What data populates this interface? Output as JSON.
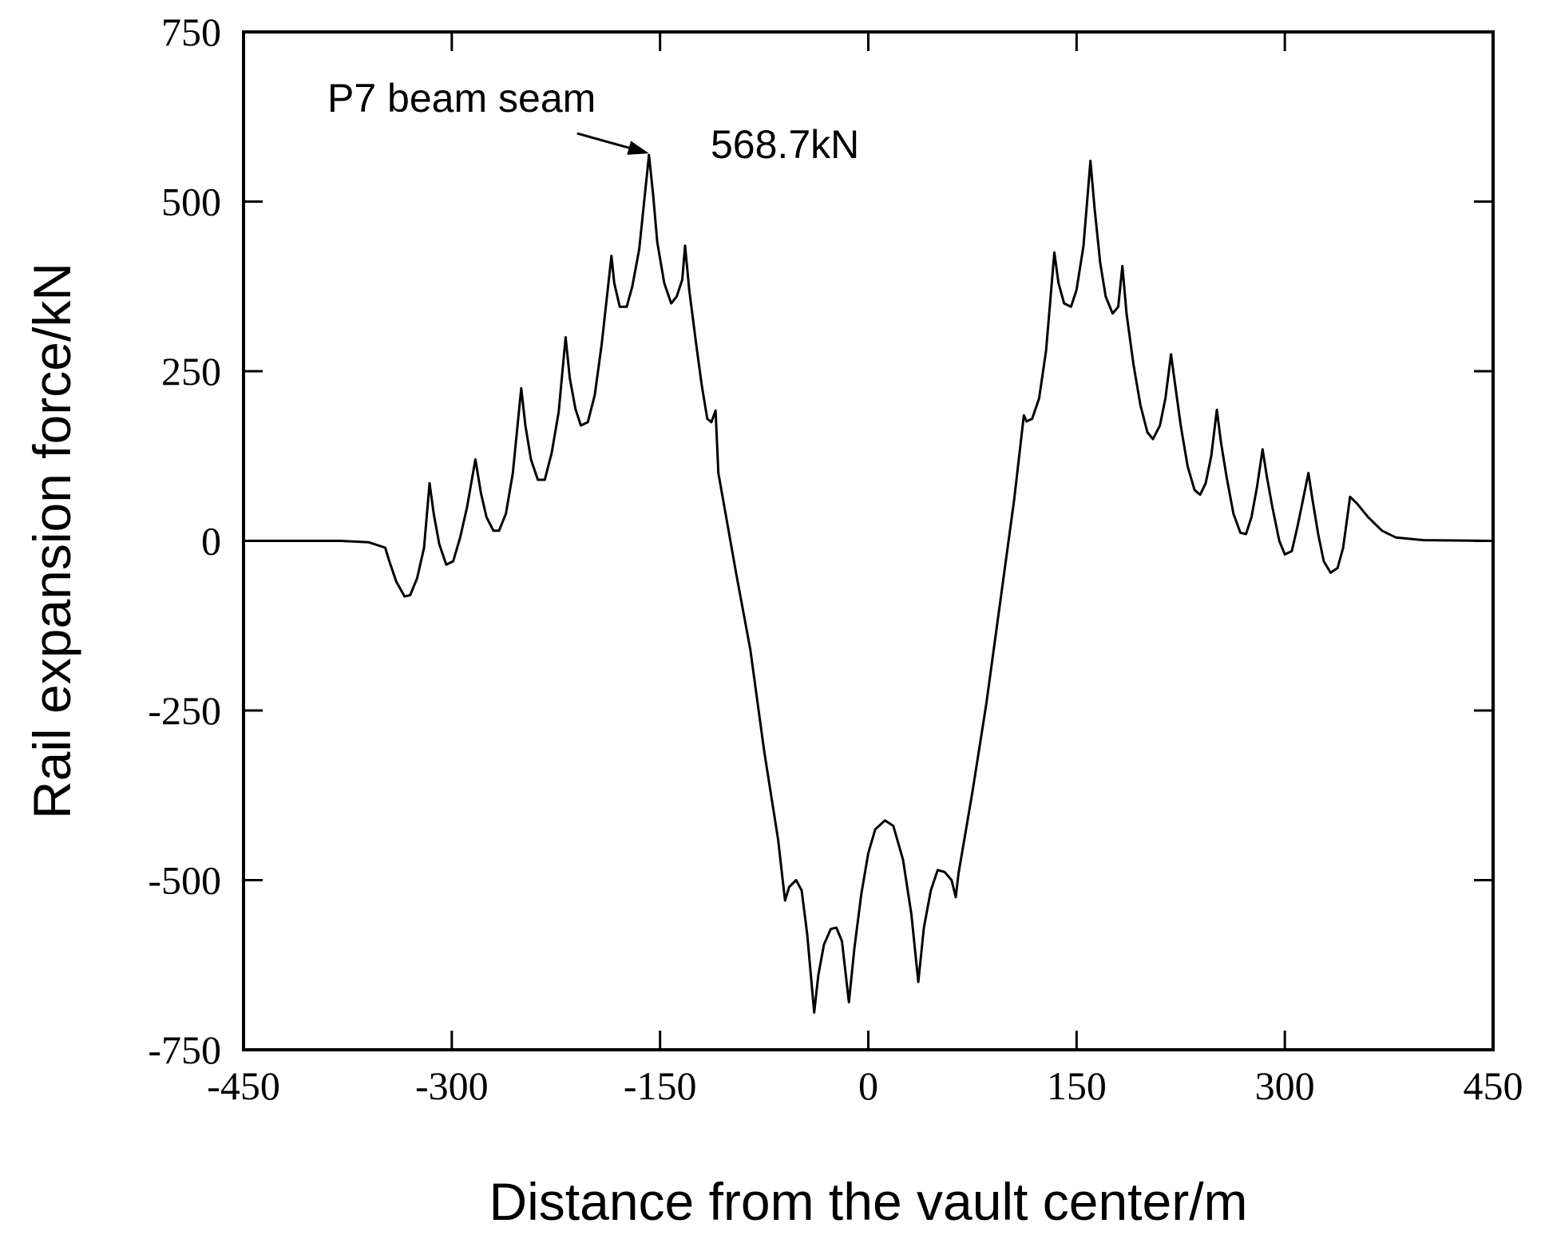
{
  "chart_data": {
    "type": "line",
    "xlabel": "Distance from the vault center/m",
    "ylabel": "Rail expansion force/kN",
    "xlim": [
      -450,
      450
    ],
    "ylim": [
      -750,
      750
    ],
    "xticks": [
      -450,
      -300,
      -150,
      0,
      150,
      300,
      450
    ],
    "yticks": [
      -750,
      -500,
      -250,
      0,
      250,
      500,
      750
    ],
    "grid": false,
    "line_color": "#000000",
    "series": [
      {
        "values": [
          [
            -450,
            0
          ],
          [
            -380,
            0
          ],
          [
            -360,
            -2
          ],
          [
            -348,
            -10
          ],
          [
            -345,
            -30
          ],
          [
            -340,
            -60
          ],
          [
            -334,
            -82
          ],
          [
            -330,
            -80
          ],
          [
            -325,
            -55
          ],
          [
            -320,
            -10
          ],
          [
            -316,
            85
          ],
          [
            -313,
            40
          ],
          [
            -309,
            -5
          ],
          [
            -304,
            -35
          ],
          [
            -299,
            -30
          ],
          [
            -294,
            5
          ],
          [
            -289,
            50
          ],
          [
            -283,
            120
          ],
          [
            -279,
            70
          ],
          [
            -275,
            35
          ],
          [
            -270,
            15
          ],
          [
            -266,
            15
          ],
          [
            -261,
            40
          ],
          [
            -256,
            100
          ],
          [
            -250,
            225
          ],
          [
            -247,
            170
          ],
          [
            -243,
            120
          ],
          [
            -238,
            90
          ],
          [
            -233,
            90
          ],
          [
            -228,
            130
          ],
          [
            -223,
            190
          ],
          [
            -218,
            300
          ],
          [
            -215,
            240
          ],
          [
            -211,
            195
          ],
          [
            -207,
            170
          ],
          [
            -202,
            175
          ],
          [
            -197,
            215
          ],
          [
            -192,
            290
          ],
          [
            -185,
            420
          ],
          [
            -183,
            380
          ],
          [
            -179,
            345
          ],
          [
            -174,
            345
          ],
          [
            -170,
            375
          ],
          [
            -165,
            430
          ],
          [
            -158,
            568.7
          ],
          [
            -155,
            510
          ],
          [
            -152,
            440
          ],
          [
            -147,
            380
          ],
          [
            -142,
            350
          ],
          [
            -138,
            360
          ],
          [
            -134,
            385
          ],
          [
            -132,
            435
          ],
          [
            -129,
            370
          ],
          [
            -124,
            290
          ],
          [
            -120,
            230
          ],
          [
            -116,
            180
          ],
          [
            -113,
            175
          ],
          [
            -110,
            192
          ],
          [
            -108,
            100
          ],
          [
            -95,
            -50
          ],
          [
            -85,
            -160
          ],
          [
            -75,
            -310
          ],
          [
            -65,
            -440
          ],
          [
            -60,
            -530
          ],
          [
            -57,
            -510
          ],
          [
            -52,
            -500
          ],
          [
            -48,
            -515
          ],
          [
            -44,
            -580
          ],
          [
            -39,
            -695
          ],
          [
            -36,
            -640
          ],
          [
            -32,
            -595
          ],
          [
            -27,
            -572
          ],
          [
            -23,
            -570
          ],
          [
            -19,
            -590
          ],
          [
            -14,
            -680
          ],
          [
            -10,
            -600
          ],
          [
            -5,
            -520
          ],
          [
            0,
            -460
          ],
          [
            5,
            -425
          ],
          [
            12,
            -412
          ],
          [
            18,
            -420
          ],
          [
            25,
            -470
          ],
          [
            31,
            -550
          ],
          [
            36,
            -650
          ],
          [
            40,
            -570
          ],
          [
            45,
            -515
          ],
          [
            50,
            -485
          ],
          [
            55,
            -488
          ],
          [
            60,
            -500
          ],
          [
            63,
            -525
          ],
          [
            65,
            -490
          ],
          [
            75,
            -370
          ],
          [
            85,
            -240
          ],
          [
            95,
            -90
          ],
          [
            105,
            60
          ],
          [
            112,
            185
          ],
          [
            114,
            176
          ],
          [
            118,
            180
          ],
          [
            123,
            210
          ],
          [
            128,
            280
          ],
          [
            134,
            425
          ],
          [
            137,
            380
          ],
          [
            141,
            350
          ],
          [
            146,
            345
          ],
          [
            150,
            370
          ],
          [
            155,
            435
          ],
          [
            160,
            560
          ],
          [
            163,
            490
          ],
          [
            167,
            410
          ],
          [
            171,
            360
          ],
          [
            176,
            335
          ],
          [
            180,
            345
          ],
          [
            183,
            405
          ],
          [
            186,
            335
          ],
          [
            191,
            260
          ],
          [
            196,
            200
          ],
          [
            201,
            160
          ],
          [
            205,
            150
          ],
          [
            210,
            170
          ],
          [
            214,
            210
          ],
          [
            218,
            275
          ],
          [
            221,
            230
          ],
          [
            225,
            170
          ],
          [
            230,
            110
          ],
          [
            235,
            75
          ],
          [
            239,
            68
          ],
          [
            243,
            85
          ],
          [
            247,
            125
          ],
          [
            251,
            193
          ],
          [
            254,
            145
          ],
          [
            258,
            95
          ],
          [
            263,
            40
          ],
          [
            268,
            12
          ],
          [
            272,
            10
          ],
          [
            276,
            35
          ],
          [
            280,
            80
          ],
          [
            284,
            135
          ],
          [
            287,
            95
          ],
          [
            291,
            50
          ],
          [
            296,
            0
          ],
          [
            300,
            -20
          ],
          [
            305,
            -15
          ],
          [
            309,
            20
          ],
          [
            313,
            60
          ],
          [
            317,
            100
          ],
          [
            320,
            60
          ],
          [
            324,
            10
          ],
          [
            328,
            -30
          ],
          [
            333,
            -47
          ],
          [
            338,
            -40
          ],
          [
            342,
            -10
          ],
          [
            347,
            65
          ],
          [
            352,
            55
          ],
          [
            360,
            35
          ],
          [
            370,
            15
          ],
          [
            380,
            5
          ],
          [
            400,
            1
          ],
          [
            450,
            0
          ]
        ]
      }
    ],
    "annotations": {
      "label": "P7 beam seam",
      "value_label": "568.7kN",
      "point": [
        -158,
        568.7
      ]
    }
  }
}
